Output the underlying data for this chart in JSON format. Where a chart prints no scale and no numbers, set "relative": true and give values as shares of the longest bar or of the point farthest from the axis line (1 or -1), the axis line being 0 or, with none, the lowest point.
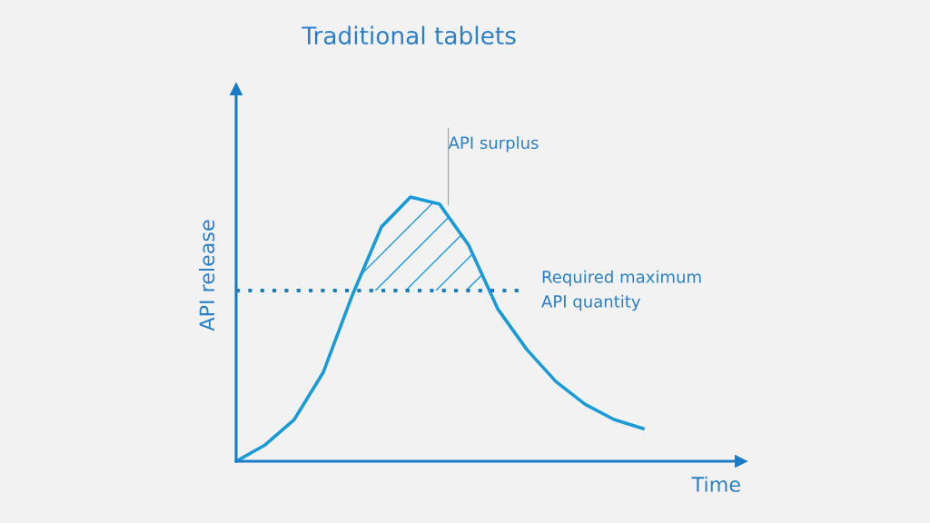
{
  "chart_data": {
    "type": "line",
    "title": "Traditional tablets",
    "xlabel": "Time",
    "ylabel": "API release",
    "relative": true,
    "categories": [
      null,
      null,
      null,
      null,
      null,
      null,
      null,
      null,
      null,
      null,
      null,
      null,
      null,
      null,
      null
    ],
    "series": [
      {
        "color": "#1a9ad6",
        "values": [
          0,
          0.062,
          0.158,
          0.337,
          0.629,
          0.887,
          1,
          0.973,
          0.818,
          0.577,
          0.423,
          0.302,
          0.216,
          0.158,
          0.124
        ]
      }
    ],
    "ref_lines": [
      {
        "axis": "y",
        "value": 0.646,
        "label": "Required maximum\nAPI quantity",
        "line_style": "dotted",
        "color": "#1a7cc4"
      }
    ],
    "annotations": [
      "API surplus"
    ],
    "legend": false,
    "marker": "none",
    "line_style": "solid"
  }
}
